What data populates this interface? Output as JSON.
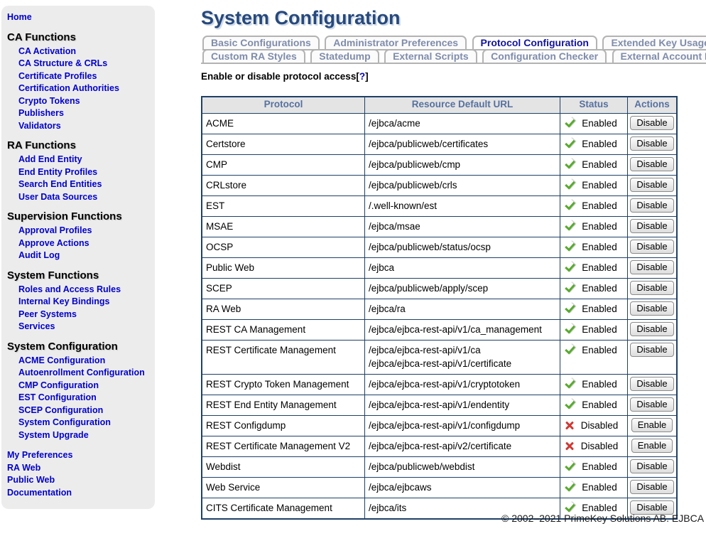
{
  "colors": {
    "link": "#0000cc",
    "title": "#27497c",
    "tab_active": "#13139e",
    "tab_inactive": "#7f8cab",
    "table_border": "#1f4066",
    "table_header_bg": "#e4e4e4",
    "table_header_text": "#56719f",
    "enabled_green": "#58ab2e",
    "disabled_red": "#cf3a34",
    "sidebar_bg": "#ececec"
  },
  "sidebar": {
    "home": "Home",
    "sections": [
      {
        "title": "CA Functions",
        "items": [
          "CA Activation",
          "CA Structure & CRLs",
          "Certificate Profiles",
          "Certification Authorities",
          "Crypto Tokens",
          "Publishers",
          "Validators"
        ]
      },
      {
        "title": "RA Functions",
        "items": [
          "Add End Entity",
          "End Entity Profiles",
          "Search End Entities",
          "User Data Sources"
        ]
      },
      {
        "title": "Supervision Functions",
        "items": [
          "Approval Profiles",
          "Approve Actions",
          "Audit Log"
        ]
      },
      {
        "title": "System Functions",
        "items": [
          "Roles and Access Rules",
          "Internal Key Bindings",
          "Peer Systems",
          "Services"
        ]
      },
      {
        "title": "System Configuration",
        "items": [
          "ACME Configuration",
          "Autoenrollment Configuration",
          "CMP Configuration",
          "EST Configuration",
          "SCEP Configuration",
          "System Configuration",
          "System Upgrade"
        ]
      }
    ],
    "footer_links": [
      "My Preferences",
      "RA Web",
      "Public Web",
      "Documentation"
    ]
  },
  "header": {
    "title": "System Configuration"
  },
  "tabs": {
    "row1": [
      {
        "label": "Basic Configurations",
        "active": false
      },
      {
        "label": "Administrator Preferences",
        "active": false
      },
      {
        "label": "Protocol Configuration",
        "active": true
      },
      {
        "label": "Extended Key Usages",
        "active": false
      }
    ],
    "row2": [
      {
        "label": "Custom RA Styles",
        "active": false
      },
      {
        "label": "Statedump",
        "active": false
      },
      {
        "label": "External Scripts",
        "active": false
      },
      {
        "label": "Configuration Checker",
        "active": false
      },
      {
        "label": "External Account Bindings",
        "active": false
      }
    ]
  },
  "section_heading": {
    "label": "Enable or disable protocol access",
    "open": "[",
    "help": "?",
    "close": "]"
  },
  "table": {
    "columns": [
      "Protocol",
      "Resource Default URL",
      "Status",
      "Actions"
    ],
    "rows": [
      {
        "protocol": "ACME",
        "urls": [
          "/ejbca/acme"
        ],
        "icon": "check-icon",
        "status": "Enabled",
        "action": "Disable"
      },
      {
        "protocol": "Certstore",
        "urls": [
          "/ejbca/publicweb/certificates"
        ],
        "icon": "check-icon",
        "status": "Enabled",
        "action": "Disable"
      },
      {
        "protocol": "CMP",
        "urls": [
          "/ejbca/publicweb/cmp"
        ],
        "icon": "check-icon",
        "status": "Enabled",
        "action": "Disable"
      },
      {
        "protocol": "CRLstore",
        "urls": [
          "/ejbca/publicweb/crls"
        ],
        "icon": "check-icon",
        "status": "Enabled",
        "action": "Disable"
      },
      {
        "protocol": "EST",
        "urls": [
          "/.well-known/est"
        ],
        "icon": "check-icon",
        "status": "Enabled",
        "action": "Disable"
      },
      {
        "protocol": "MSAE",
        "urls": [
          "/ejbca/msae"
        ],
        "icon": "check-icon",
        "status": "Enabled",
        "action": "Disable"
      },
      {
        "protocol": "OCSP",
        "urls": [
          "/ejbca/publicweb/status/ocsp"
        ],
        "icon": "check-icon",
        "status": "Enabled",
        "action": "Disable"
      },
      {
        "protocol": "Public Web",
        "urls": [
          "/ejbca"
        ],
        "icon": "check-icon",
        "status": "Enabled",
        "action": "Disable"
      },
      {
        "protocol": "SCEP",
        "urls": [
          "/ejbca/publicweb/apply/scep"
        ],
        "icon": "check-icon",
        "status": "Enabled",
        "action": "Disable"
      },
      {
        "protocol": "RA Web",
        "urls": [
          "/ejbca/ra"
        ],
        "icon": "check-icon",
        "status": "Enabled",
        "action": "Disable"
      },
      {
        "protocol": "REST CA Management",
        "urls": [
          "/ejbca/ejbca-rest-api/v1/ca_management"
        ],
        "icon": "check-icon",
        "status": "Enabled",
        "action": "Disable"
      },
      {
        "protocol": "REST Certificate Management",
        "urls": [
          "/ejbca/ejbca-rest-api/v1/ca",
          "/ejbca/ejbca-rest-api/v1/certificate"
        ],
        "icon": "check-icon",
        "status": "Enabled",
        "action": "Disable"
      },
      {
        "protocol": "REST Crypto Token Management",
        "urls": [
          "/ejbca/ejbca-rest-api/v1/cryptotoken"
        ],
        "icon": "check-icon",
        "status": "Enabled",
        "action": "Disable"
      },
      {
        "protocol": "REST End Entity Management",
        "urls": [
          "/ejbca/ejbca-rest-api/v1/endentity"
        ],
        "icon": "check-icon",
        "status": "Enabled",
        "action": "Disable"
      },
      {
        "protocol": "REST Configdump",
        "urls": [
          "/ejbca/ejbca-rest-api/v1/configdump"
        ],
        "icon": "cross-icon",
        "status": "Disabled",
        "action": "Enable"
      },
      {
        "protocol": "REST Certificate Management V2",
        "urls": [
          "/ejbca/ejbca-rest-api/v2/certificate"
        ],
        "icon": "cross-icon",
        "status": "Disabled",
        "action": "Enable"
      },
      {
        "protocol": "Webdist",
        "urls": [
          "/ejbca/publicweb/webdist"
        ],
        "icon": "check-icon",
        "status": "Enabled",
        "action": "Disable"
      },
      {
        "protocol": "Web Service",
        "urls": [
          "/ejbca/ejbcaws"
        ],
        "icon": "check-icon",
        "status": "Enabled",
        "action": "Disable"
      },
      {
        "protocol": "CITS Certificate Management",
        "urls": [
          "/ejbca/its"
        ],
        "icon": "check-icon",
        "status": "Enabled",
        "action": "Disable"
      }
    ]
  },
  "footer": {
    "copyright": "© 2002–2021 PrimeKey Solutions AB. EJBCA"
  }
}
